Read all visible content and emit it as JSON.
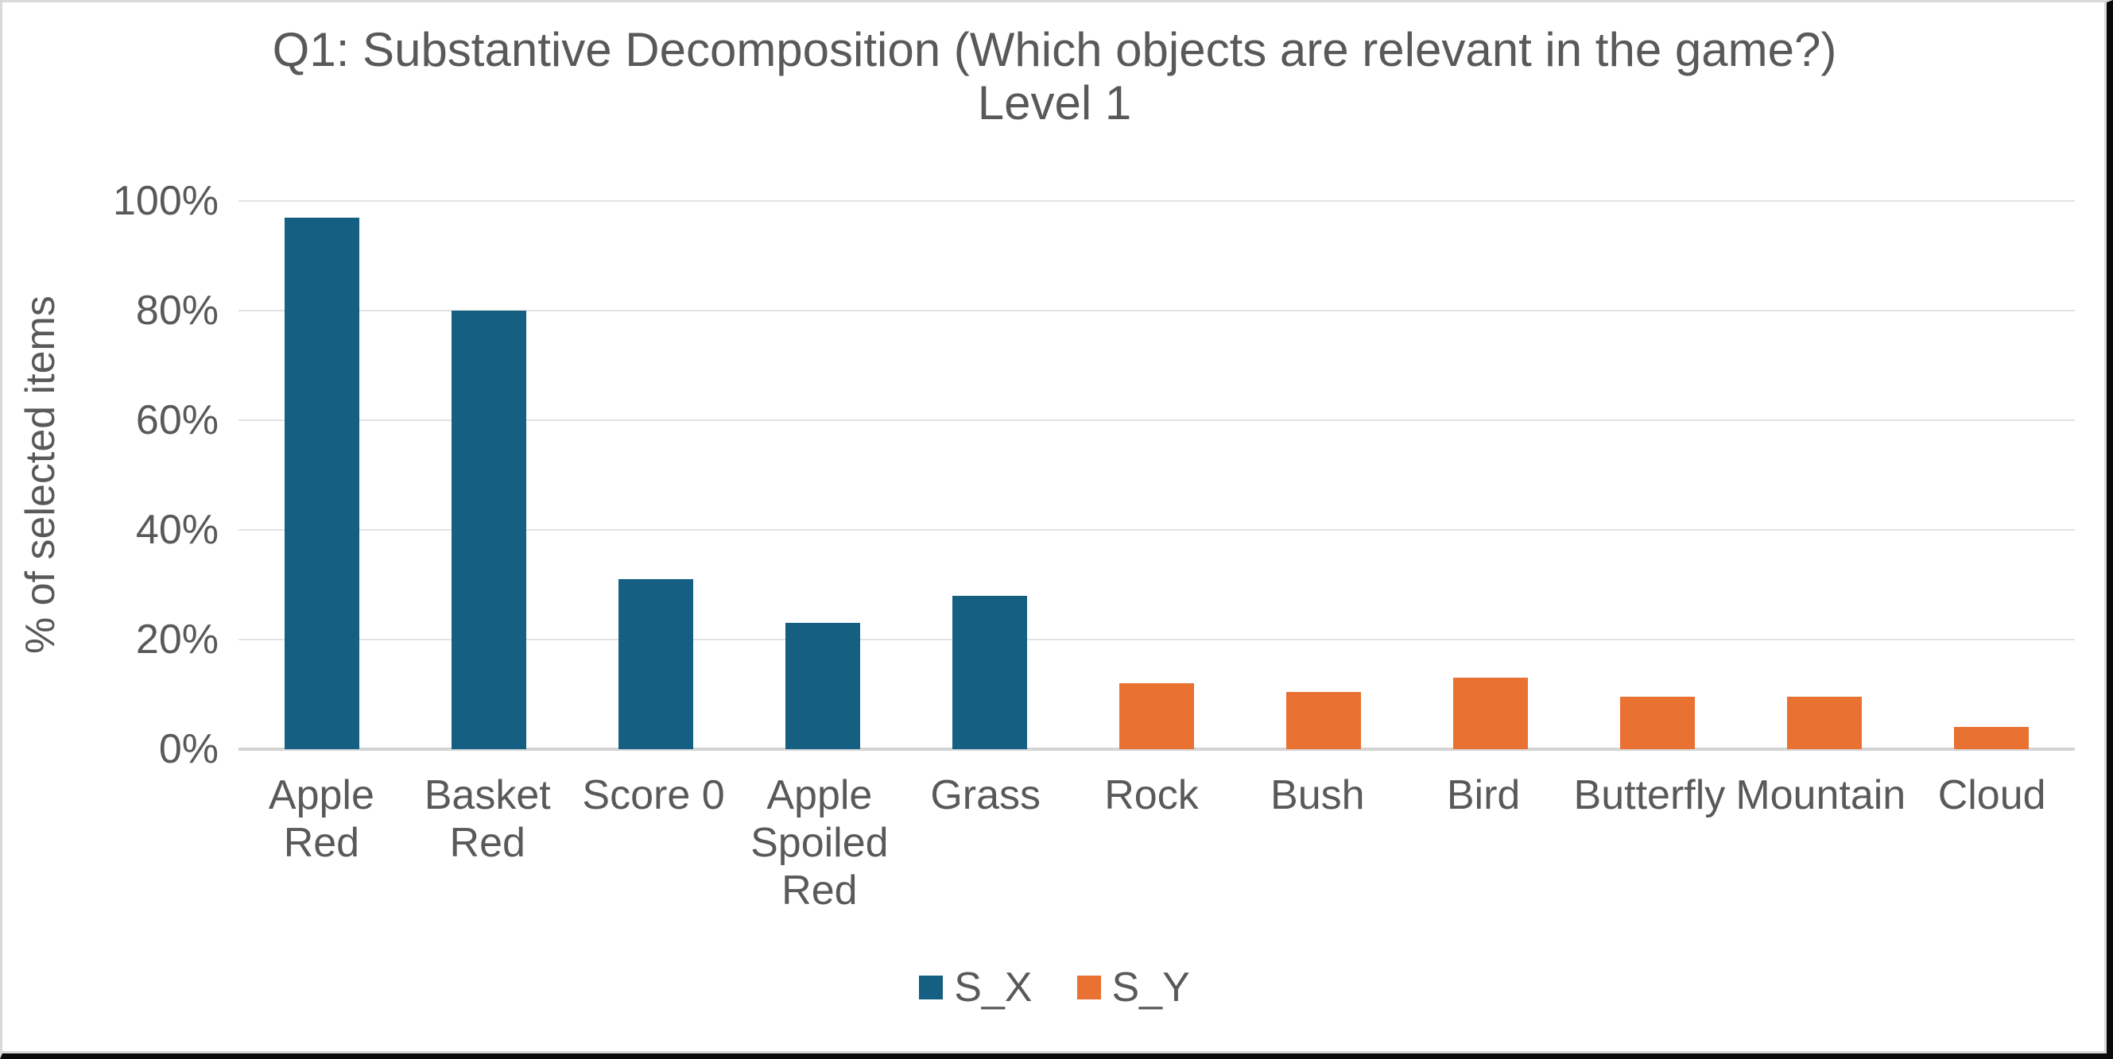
{
  "chart_data": {
    "type": "bar",
    "title": "Q1: Substantive Decomposition (Which objects are relevant in the game?)",
    "subtitle": "Level 1",
    "ylabel": "% of selected items",
    "ylim": [
      0,
      100
    ],
    "ytick_step": 20,
    "ytick_labels": [
      "0%",
      "20%",
      "40%",
      "60%",
      "80%",
      "100%"
    ],
    "grid": true,
    "legend_position": "bottom",
    "categories": [
      "Apple Red",
      "Basket Red",
      "Score 0",
      "Apple Spoiled Red",
      "Grass",
      "Rock",
      "Bush",
      "Bird",
      "Butterfly",
      "Mountain",
      "Cloud"
    ],
    "series": [
      {
        "name": "S_X",
        "color": "#156082",
        "values": [
          97,
          80,
          31,
          23,
          28,
          null,
          null,
          null,
          null,
          null,
          null
        ]
      },
      {
        "name": "S_Y",
        "color": "#E97132",
        "values": [
          null,
          null,
          null,
          null,
          null,
          12,
          10.5,
          13,
          9.5,
          9.5,
          4
        ]
      }
    ]
  },
  "frame": {
    "chart_border_color": "#d9d9d9",
    "edge_border_color": "#0a0a0a",
    "gridline_color": "#e2e2e2",
    "axis_line_color": "#d4d4d4",
    "text_color": "#595959"
  }
}
